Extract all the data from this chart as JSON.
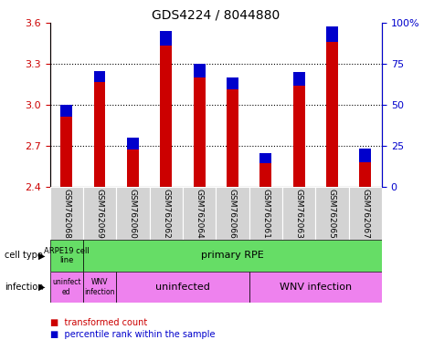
{
  "title": "GDS4224 / 8044880",
  "samples": [
    "GSM762068",
    "GSM762069",
    "GSM762060",
    "GSM762062",
    "GSM762064",
    "GSM762066",
    "GSM762061",
    "GSM762063",
    "GSM762065",
    "GSM762067"
  ],
  "transformed_count": [
    3.0,
    3.25,
    2.76,
    3.54,
    3.3,
    3.2,
    2.65,
    3.24,
    3.57,
    2.68
  ],
  "percentile_rank_pct": [
    7,
    7,
    7,
    9,
    8,
    7,
    6,
    8,
    9,
    8
  ],
  "baseline": 2.4,
  "ylim": [
    2.4,
    3.6
  ],
  "yticks_left": [
    2.4,
    2.7,
    3.0,
    3.3,
    3.6
  ],
  "yticks_right": [
    0,
    25,
    50,
    75,
    100
  ],
  "bar_color_red": "#cc0000",
  "bar_color_blue": "#0000cc",
  "tick_color_left": "#cc0000",
  "tick_color_right": "#0000cc",
  "sample_bg_color": "#d3d3d3",
  "cell_type_color": "#66dd66",
  "infection_color": "#ee82ee",
  "cell_type_arpe_label": "ARPE19 cell\nline",
  "cell_type_primary_label": "primary RPE",
  "infection_labels": [
    "uninfect\ned",
    "WNV\ninfection",
    "uninfected",
    "WNV infection"
  ],
  "legend_red_label": "transformed count",
  "legend_blue_label": "percentile rank within the sample",
  "title_fontsize": 10,
  "bar_width": 0.35
}
